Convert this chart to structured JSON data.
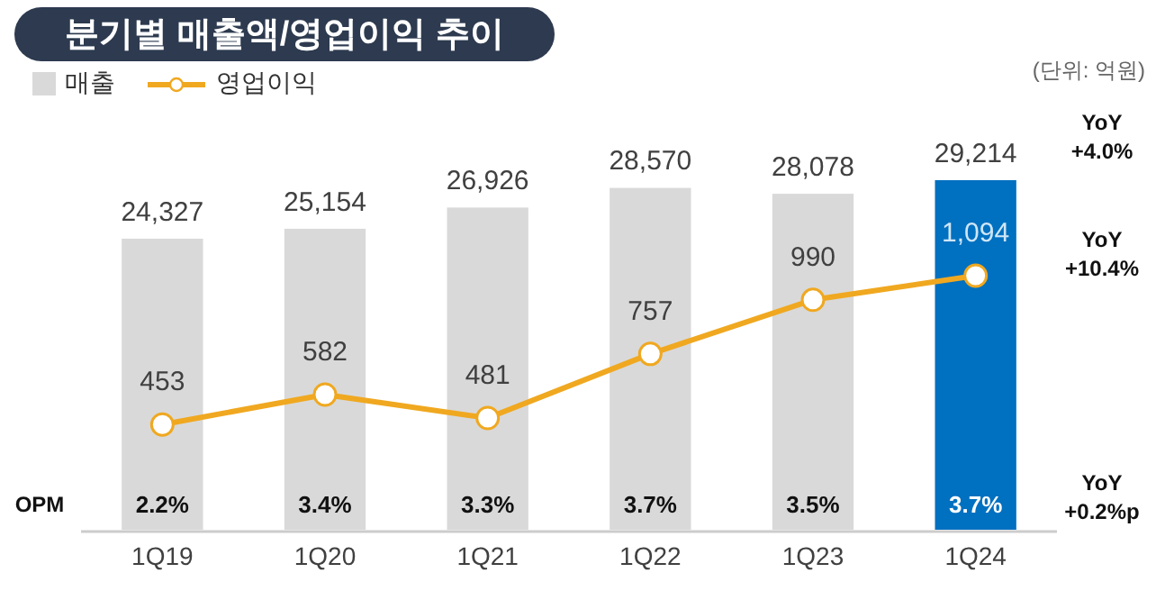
{
  "chart_data": {
    "type": "bar",
    "title": "분기별 매출액/영업이익 추이",
    "categories": [
      "1Q19",
      "1Q20",
      "1Q21",
      "1Q22",
      "1Q23",
      "1Q24"
    ],
    "series": [
      {
        "name": "매출",
        "color": "#d9d9d9",
        "colors": [
          "#d9d9d9",
          "#d9d9d9",
          "#d9d9d9",
          "#d9d9d9",
          "#d9d9d9",
          "#0070c0"
        ],
        "values": [
          24327,
          25154,
          26926,
          28570,
          28078,
          29214
        ],
        "value_labels": [
          "24,327",
          "25,154",
          "26,926",
          "28,570",
          "28,078",
          "29,214"
        ]
      },
      {
        "name": "영업이익",
        "type": "line",
        "axis": "y2",
        "color": "#f0a820",
        "values": [
          453,
          582,
          481,
          757,
          990,
          1094
        ],
        "value_labels": [
          "453",
          "582",
          "481",
          "757",
          "990",
          "1,094"
        ]
      }
    ],
    "legend": "top left",
    "marker": "circle",
    "line_style": "solid",
    "annotations": [
      "(단위: 억원)",
      "OPM",
      "YoY\n+4.0%",
      "YoY\n+10.4%",
      "YoY\n+0.2%p",
      "2.2%",
      "3.4%",
      "3.3%",
      "3.7%",
      "3.5%",
      "3.7%"
    ]
  }
}
